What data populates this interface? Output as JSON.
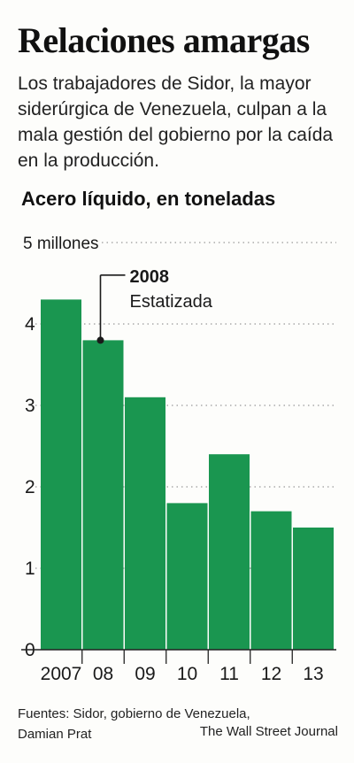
{
  "header": {
    "title": "Relaciones amargas",
    "subtitle": "Los trabajadores de Sidor, la mayor siderúrgica de Venezuela, culpan a la mala gestión del gobierno por la caída en la producción.",
    "unit_label": "Acero líquido, en toneladas"
  },
  "chart_data": {
    "type": "bar",
    "title": "Acero líquido, en toneladas",
    "categories": [
      "2007",
      "08",
      "09",
      "10",
      "11",
      "12",
      "13"
    ],
    "values": [
      4.3,
      3.8,
      3.1,
      1.8,
      2.4,
      1.7,
      1.5
    ],
    "ylim": [
      0,
      5
    ],
    "yticks": [
      {
        "value": 0,
        "label": "0"
      },
      {
        "value": 1,
        "label": "1"
      },
      {
        "value": 2,
        "label": "2"
      },
      {
        "value": 3,
        "label": "3"
      },
      {
        "value": 4,
        "label": "4"
      },
      {
        "value": 5,
        "label": "5 millones"
      }
    ],
    "grid": "dotted horizontal",
    "bar_color": "#1a9650",
    "annotation": {
      "category": "08",
      "value": 3.8,
      "title": "2008",
      "text": "Estatizada"
    }
  },
  "footer": {
    "source_line1": "Fuentes: Sidor, gobierno de Venezuela,",
    "source_line2": "Damian Prat",
    "credit": "The Wall Street Journal"
  }
}
